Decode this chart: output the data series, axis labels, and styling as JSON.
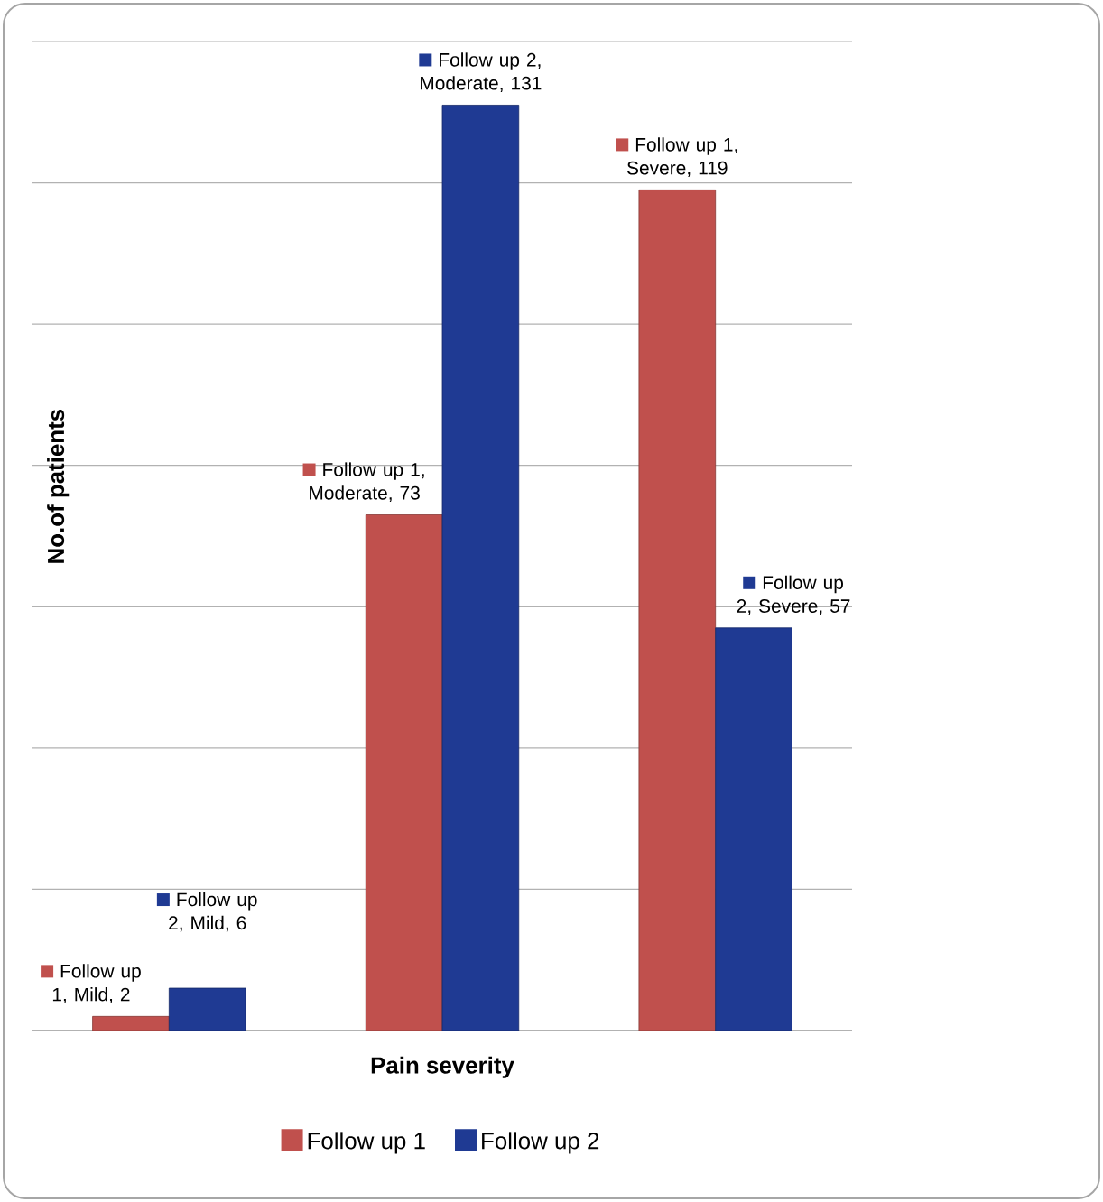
{
  "chart_data": {
    "type": "bar",
    "xlabel": "Pain severity",
    "ylabel": "No.of patients",
    "categories": [
      null,
      null,
      null
    ],
    "ylim": [
      0,
      140
    ],
    "yticks": [
      {
        "value": 0,
        "label": null
      },
      {
        "value": 20,
        "label": null
      },
      {
        "value": 40,
        "label": null
      },
      {
        "value": 60,
        "label": null
      },
      {
        "value": 80,
        "label": null
      },
      {
        "value": 100,
        "label": null
      },
      {
        "value": 120,
        "label": null
      },
      {
        "value": 140,
        "label": null
      }
    ],
    "grid": "y",
    "legend": "bottom",
    "series": [
      {
        "name": "Follow up 1",
        "color": "#c0504d",
        "values": [
          2,
          73,
          119
        ],
        "value_labels": [
          "Follow up 1, Mild, 2",
          "Follow up 1, Moderate, 73",
          "Follow up 1, Severe, 119"
        ]
      },
      {
        "name": "Follow up 2",
        "color": "#1f3a93",
        "values": [
          6,
          131,
          57
        ],
        "value_labels": [
          "Follow up 2, Mild, 6",
          "Follow up 2, Moderate, 131",
          "Follow up 2, Severe, 57"
        ]
      }
    ]
  }
}
